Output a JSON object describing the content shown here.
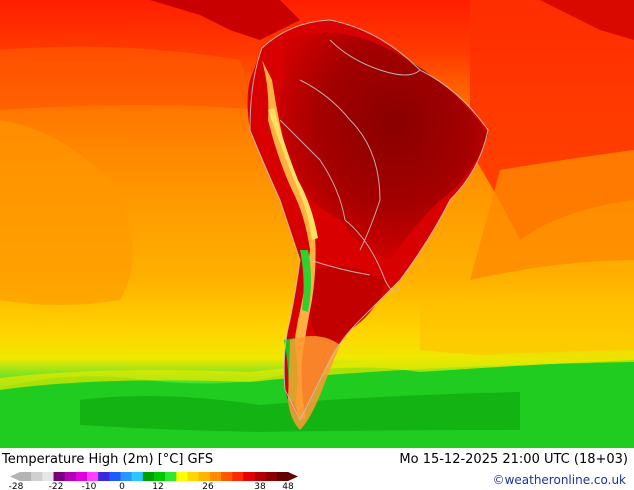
{
  "title": "Temperature High (2m) [°C] GFS",
  "datetime": "Mo 15-12-2025 21:00 UTC (18+03)",
  "credit": "©weatheronline.co.uk",
  "legend": {
    "ticks": [
      "-28",
      "-22",
      "-10",
      "0",
      "12",
      "26",
      "38",
      "48"
    ],
    "colors": [
      "#b4b4b4",
      "#d0d0d0",
      "#e6e6e6",
      "#7a0080",
      "#b400b4",
      "#e000e0",
      "#ff40ff",
      "#3c28dc",
      "#1e5aff",
      "#2896ff",
      "#28c8ff",
      "#00a000",
      "#00c800",
      "#32e632",
      "#ffff00",
      "#ffd700",
      "#ffb400",
      "#ff8c00",
      "#ff5a00",
      "#ff2800",
      "#e60000",
      "#b40000",
      "#8c0000",
      "#640000"
    ]
  },
  "map_colors": {
    "ocean_warm": "#ff7a00",
    "ocean_hot": "#ff2000",
    "ocean_mid": "#ffa000",
    "ocean_cool": "#ffd000",
    "southern_green": "#20d020",
    "land_hot": "#c80000",
    "land_very_hot": "#900000",
    "andes_yellow": "#ffd040",
    "border": "#c0c0c0"
  }
}
